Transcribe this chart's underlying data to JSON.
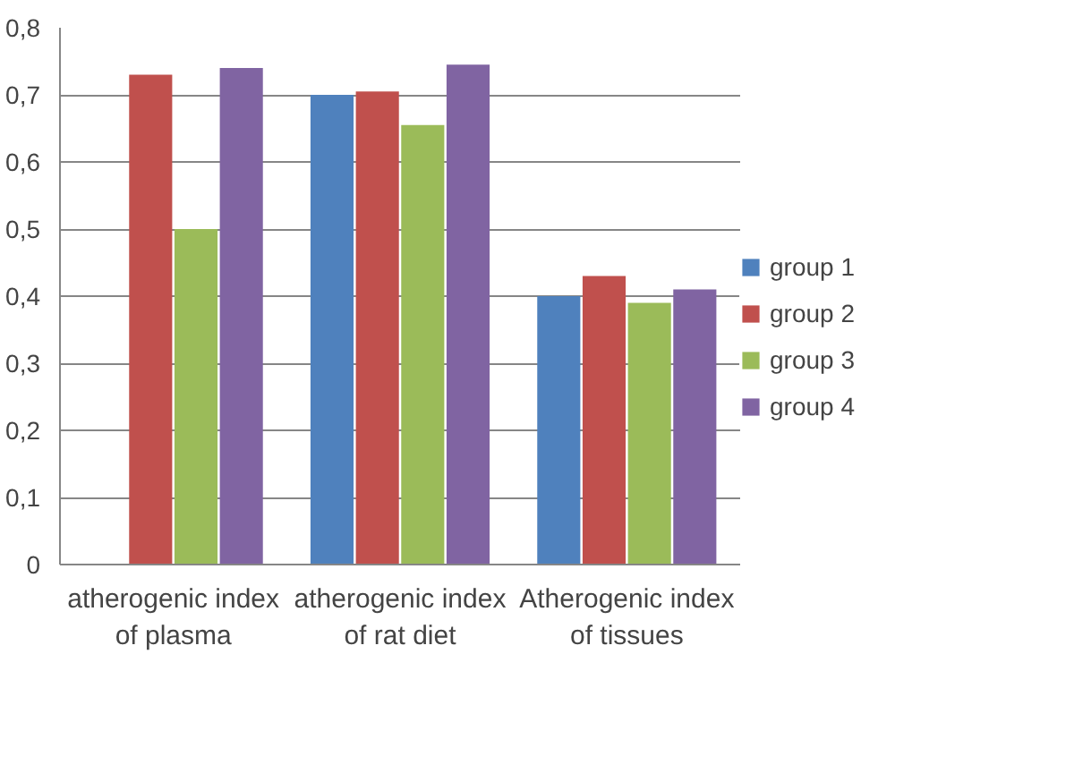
{
  "chart_data": {
    "type": "bar",
    "categories": [
      "atherogenic index of plasma",
      "atherogenic index of rat diet",
      "Atherogenic index of tissues"
    ],
    "series": [
      {
        "name": "group 1",
        "color": "#4f81bd",
        "values": [
          null,
          0.7,
          0.4
        ]
      },
      {
        "name": "group 2",
        "color": "#c0504d",
        "values": [
          0.73,
          0.705,
          0.43
        ]
      },
      {
        "name": "group 3",
        "color": "#9bbb59",
        "values": [
          0.5,
          0.655,
          0.39
        ]
      },
      {
        "name": "group 4",
        "color": "#8064a2",
        "values": [
          0.74,
          0.745,
          0.41
        ]
      }
    ],
    "ylim": [
      0,
      0.8
    ],
    "yticks": [
      0,
      {
        "value": 0.1,
        "label": "0,1"
      },
      {
        "value": 0.2,
        "label": "0,2"
      },
      {
        "value": 0.3,
        "label": "0,3"
      },
      {
        "value": 0.4,
        "label": "0,4"
      },
      {
        "value": 0.5,
        "label": "0,5"
      },
      {
        "value": 0.6,
        "label": "0,6"
      },
      {
        "value": 0.7,
        "label": "0,7"
      },
      {
        "value": 0.8,
        "label": "0,8"
      }
    ],
    "grid": "y",
    "legend": "right"
  }
}
